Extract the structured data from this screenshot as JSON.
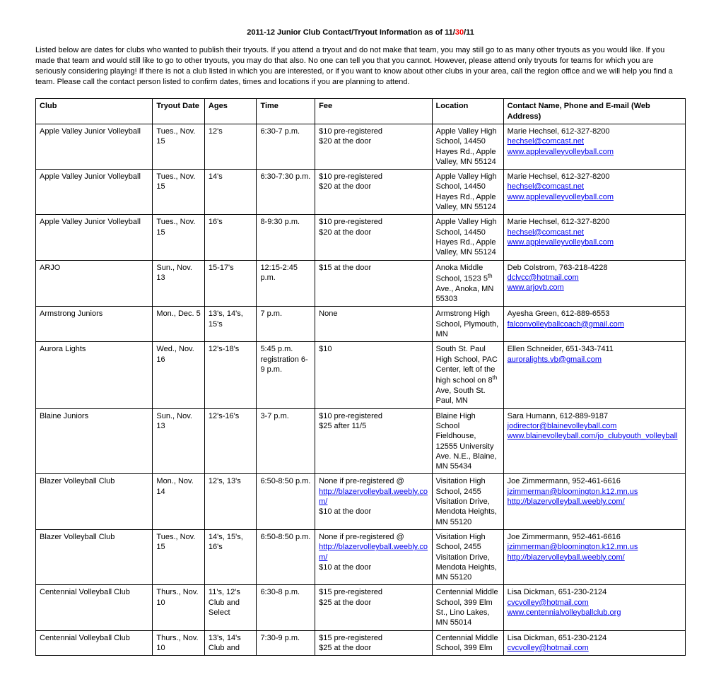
{
  "title_prefix": "2011-12 Junior Club Contact/Tryout Information as of 11/",
  "title_highlight": "30",
  "title_suffix": "/11",
  "intro": "Listed below are dates for clubs who wanted to publish their tryouts. If you attend a tryout and do not make that team, you may still go to as many other tryouts as you would like. If you made that team and would still like to go to other tryouts, you may do that also. No one can tell you that you cannot. However, please attend only tryouts for teams for which you are seriously considering playing! If there is not a club listed in which you are interested, or if you want to know about other clubs in your area, call the region office and we will help you find a team. Please call the contact person listed to confirm dates, times and locations if you are planning to attend.",
  "headers": {
    "club": "Club",
    "date": "Tryout Date",
    "ages": "Ages",
    "time": "Time",
    "fee": "Fee",
    "location": "Location",
    "contact": "Contact Name, Phone and E-mail (Web Address)"
  },
  "rows": [
    {
      "club": "Apple Valley Junior Volleyball",
      "date": "Tues., Nov. 15",
      "ages": "12's",
      "time": "6:30-7 p.m.",
      "fee_lines": [
        "$10 pre-registered",
        "$20 at the door"
      ],
      "location": "Apple Valley High School, 14450 Hayes Rd., Apple Valley, MN  55124",
      "contact_name": "Marie Hechsel, 612-327-8200",
      "contact_links": [
        {
          "text": "hechsel@comcast.net"
        },
        {
          "text": "www.applevalleyvolleyball.com"
        }
      ]
    },
    {
      "club": "Apple Valley Junior Volleyball",
      "date": "Tues., Nov. 15",
      "ages": "14's",
      "time": "6:30-7:30 p.m.",
      "fee_lines": [
        "$10 pre-registered",
        "$20 at the door"
      ],
      "location": "Apple Valley High School, 14450 Hayes Rd., Apple Valley, MN  55124",
      "contact_name": "Marie Hechsel, 612-327-8200",
      "contact_links": [
        {
          "text": "hechsel@comcast.net"
        },
        {
          "text": "www.applevalleyvolleyball.com"
        }
      ]
    },
    {
      "club": "Apple Valley Junior Volleyball",
      "date": "Tues., Nov. 15",
      "ages": "16's",
      "time": "8-9:30 p.m.",
      "fee_lines": [
        "$10 pre-registered",
        "$20 at the door"
      ],
      "location": "Apple Valley High School, 14450 Hayes Rd., Apple Valley, MN  55124",
      "contact_name": "Marie Hechsel, 612-327-8200",
      "contact_links": [
        {
          "text": "hechsel@comcast.net"
        },
        {
          "text": "www.applevalleyvolleyball.com"
        }
      ]
    },
    {
      "club": "ARJO",
      "date": "Sun., Nov. 13",
      "ages": "15-17's",
      "time": "12:15-2:45 p.m.",
      "fee_lines": [
        "$15 at the door"
      ],
      "location_html": "Anoka Middle School, 1523  5<sup>th</sup> Ave., Anoka, MN 55303",
      "contact_name": "Deb Colstrom, 763-218-4228",
      "contact_links": [
        {
          "text": "dclvcc@hotmail.com"
        },
        {
          "text": "www.arjovb.com"
        }
      ]
    },
    {
      "club": "Armstrong Juniors",
      "date": "Mon., Dec. 5",
      "ages": "13's, 14's, 15's",
      "time": "7 p.m.",
      "fee_lines": [
        "None"
      ],
      "location": "Armstrong High School, Plymouth, MN",
      "contact_name": "Ayesha Green, 612-889-6553",
      "contact_links": [
        {
          "text": "falconvolleyballcoach@gmail.com"
        }
      ]
    },
    {
      "club": "Aurora Lights",
      "date": "Wed., Nov. 16",
      "ages": "12's-18's",
      "time": "5:45 p.m. registration 6-9 p.m.",
      "fee_lines": [
        "$10"
      ],
      "location_html": "South St. Paul High School, PAC Center, left of the high school on 8<sup>th</sup> Ave, South St. Paul, MN",
      "contact_name": "Ellen Schneider, 651-343-7411",
      "contact_links": [
        {
          "text": "auroralights.vb@gmail.com"
        }
      ]
    },
    {
      "club": "Blaine Juniors",
      "date": "Sun., Nov. 13",
      "ages": "12's-16's",
      "time": "3-7 p.m.",
      "fee_lines": [
        "$10 pre-registered",
        "$25 after 11/5"
      ],
      "location": "Blaine High School Fieldhouse, 12555 University Ave. N.E., Blaine, MN  55434",
      "contact_name": "Sara Humann, 612-889-9187",
      "contact_links": [
        {
          "text": "jodirector@blainevolleyball.com"
        },
        {
          "text": "www.blainevolleyball.com/jo_clubyouth_volleyball"
        }
      ]
    },
    {
      "club": "Blazer Volleyball Club",
      "date": "Mon., Nov. 14",
      "ages": "12's, 13's",
      "time": "6:50-8:50 p.m.",
      "fee_prefix": "None if pre-registered @",
      "fee_link": "http://blazervolleyball.weebly.com/",
      "fee_suffix": "$10 at the door",
      "location": "Visitation High School, 2455 Visitation Drive, Mendota Heights, MN  55120",
      "contact_name": "Joe Zimmermann, 952-461-6616",
      "contact_links": [
        {
          "text": "jzimmerman@bloomington.k12.mn.us"
        },
        {
          "text": "http://blazervolleyball.weebly.com/"
        }
      ]
    },
    {
      "club": "Blazer Volleyball Club",
      "date": "Tues., Nov. 15",
      "ages": "14's, 15's, 16's",
      "time": "6:50-8:50 p.m.",
      "fee_prefix": "None if pre-registered @",
      "fee_link": "http://blazervolleyball.weebly.com/",
      "fee_suffix": "$10 at the door",
      "location": "Visitation High School, 2455 Visitation Drive, Mendota Heights, MN  55120",
      "contact_name": "Joe Zimmermann, 952-461-6616",
      "contact_links": [
        {
          "text": "jzimmerman@bloomington.k12.mn.us"
        },
        {
          "text": "http://blazervolleyball.weebly.com/"
        }
      ]
    },
    {
      "club": "Centennial Volleyball Club",
      "date": "Thurs., Nov. 10",
      "ages": "11's, 12's Club and Select",
      "time": "6:30-8 p.m.",
      "fee_lines": [
        "$15 pre-registered",
        "$25 at the door"
      ],
      "location": "Centennial Middle School, 399 Elm St., Lino Lakes, MN  55014",
      "contact_name": "Lisa Dickman, 651-230-2124",
      "contact_links": [
        {
          "text": "cvcvolley@hotmail.com"
        },
        {
          "text": "www.centennialvolleyballclub.org"
        }
      ]
    },
    {
      "club": "Centennial Volleyball Club",
      "date": "Thurs., Nov. 10",
      "ages": "13's, 14's Club and",
      "time": "7:30-9 p.m.",
      "fee_lines": [
        "$15 pre-registered",
        "$25 at the door"
      ],
      "location": "Centennial Middle School, 399 Elm",
      "contact_name": "Lisa Dickman, 651-230-2124",
      "contact_links": [
        {
          "text": "cvcvolley@hotmail.com"
        }
      ]
    }
  ]
}
